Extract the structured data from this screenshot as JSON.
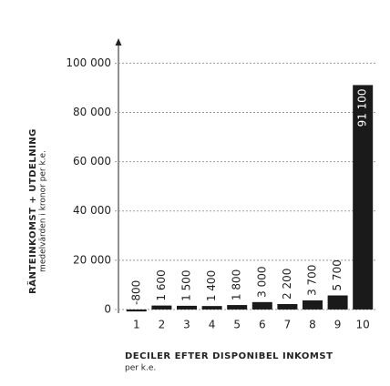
{
  "chart_data": {
    "type": "bar",
    "y_title": "RÄNTEINKOMST + UTDELNING",
    "y_subtitle": "medelvärden i kronor per k.e.",
    "x_title": "DECILER EFTER DISPONIBEL INKOMST",
    "x_subtitle": "per k.e.",
    "categories": [
      "1",
      "2",
      "3",
      "4",
      "5",
      "6",
      "7",
      "8",
      "9",
      "10"
    ],
    "values": [
      -800,
      1600,
      1500,
      1400,
      1800,
      3000,
      2200,
      3700,
      5700,
      91100
    ],
    "value_labels": [
      "-800",
      "1 600",
      "1 500",
      "1 400",
      "1 800",
      "3 000",
      "2 200",
      "3 700",
      "5 700",
      "91 100"
    ],
    "color": "#1a1a1a",
    "ylim": [
      -1500,
      109000
    ],
    "yticks": [
      0,
      {
        "value": 20000,
        "label": "20 000"
      },
      {
        "value": 40000,
        "label": "40 000"
      },
      {
        "value": 60000,
        "label": "60 000"
      },
      {
        "value": 80000,
        "label": "80 000"
      },
      {
        "value": 100000,
        "label": "100 000"
      }
    ],
    "grid": true
  }
}
